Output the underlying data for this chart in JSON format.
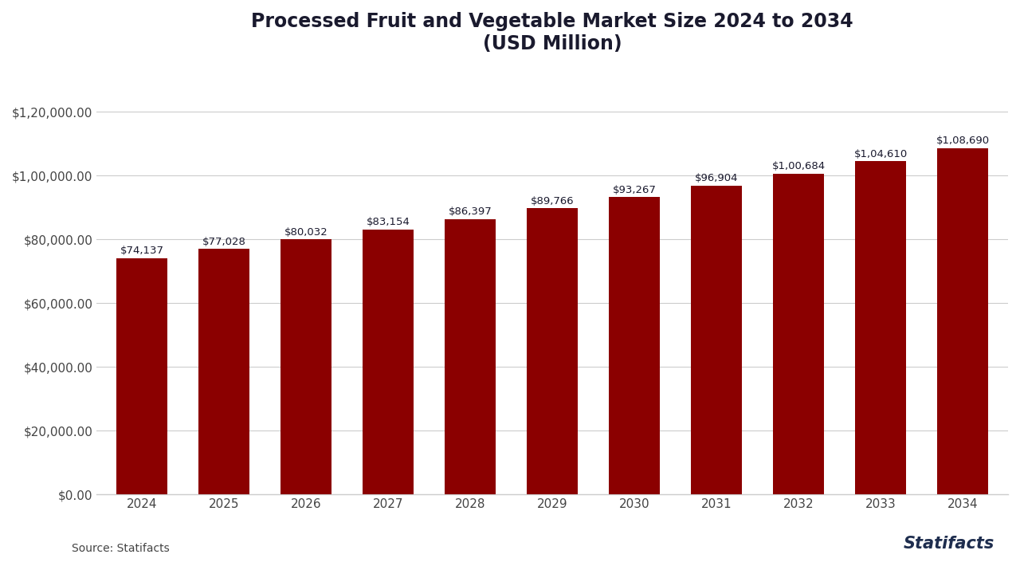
{
  "title_line1": "Processed Fruit and Vegetable Market Size 2024 to 2034",
  "title_line2": "(USD Million)",
  "years": [
    2024,
    2025,
    2026,
    2027,
    2028,
    2029,
    2030,
    2031,
    2032,
    2033,
    2034
  ],
  "values": [
    74137,
    77028,
    80032,
    83154,
    86397,
    89766,
    93267,
    96904,
    100684,
    104610,
    108690
  ],
  "labels": [
    "$74,137",
    "$77,028",
    "$80,032",
    "$83,154",
    "$86,397",
    "$89,766",
    "$93,267",
    "$96,904",
    "$1,00,684",
    "$1,04,610",
    "$1,08,690"
  ],
  "bar_color": "#8B0000",
  "background_color": "#ffffff",
  "title_color": "#1a1a2e",
  "label_color": "#1a1a2e",
  "axis_color": "#444444",
  "grid_color": "#cccccc",
  "yticks": [
    0,
    20000,
    40000,
    60000,
    80000,
    100000,
    120000
  ],
  "ytick_labels": [
    "$0.00",
    "$20,000.00",
    "$40,000.00",
    "$60,000.00",
    "$80,000.00",
    "$1,00,000.00",
    "$1,20,000.00"
  ],
  "ylim": [
    0,
    132000
  ],
  "source_text": "Source: Statifacts",
  "statifacts_text": "Statifacts",
  "title_fontsize": 17,
  "label_fontsize": 9.5,
  "tick_fontsize": 11,
  "source_fontsize": 10
}
